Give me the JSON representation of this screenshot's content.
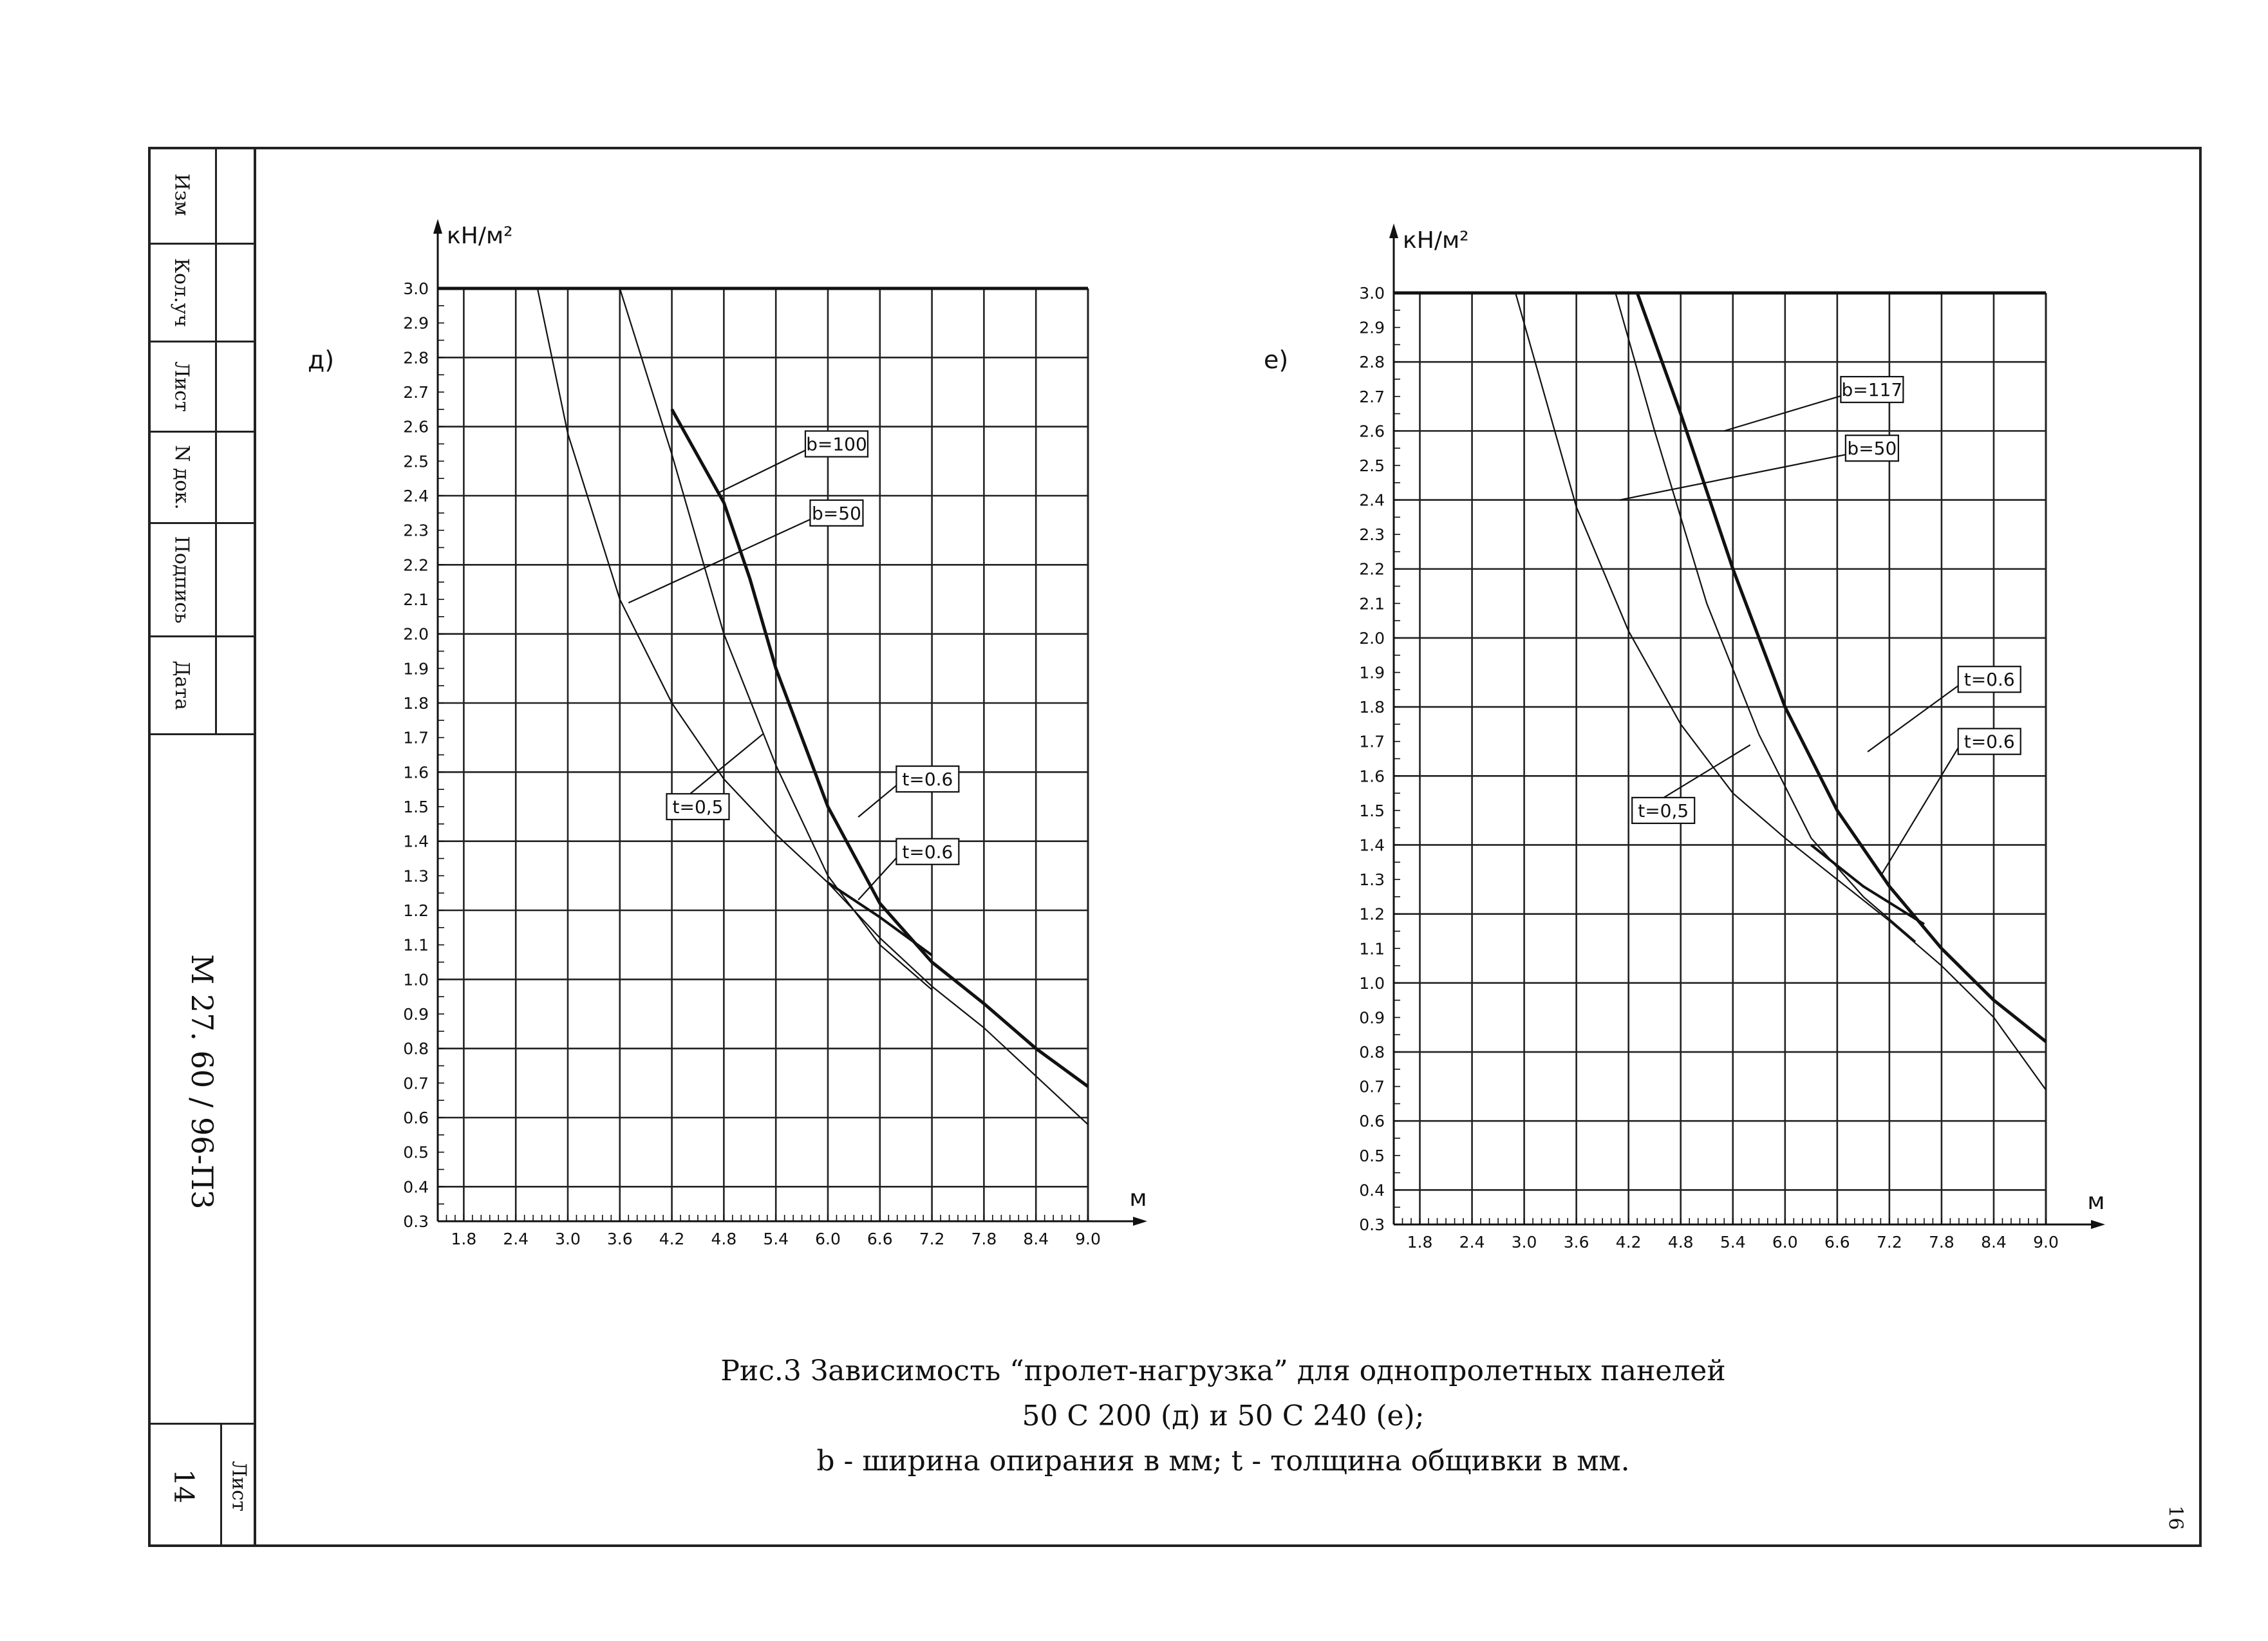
{
  "stamp": {
    "cells": [
      "Изм",
      "Кол.уч",
      "Лист",
      "N док.",
      "Подпись",
      "Дата"
    ],
    "doc_code": "М 27. 60 / 96-ПЗ",
    "sheet_label": "Лист",
    "sheet_number": "14"
  },
  "page_corner": "16",
  "caption": {
    "line1": "Рис.3 Зависимость “пролет-нагрузка” для однопролетных панелей",
    "line2": "50 С 200 (д) и 50 С 240 (е);",
    "line3": "b - ширина опирания в мм;   t - толщина общивки в мм."
  },
  "chart_data": [
    {
      "type": "line",
      "panel_label": "д)",
      "ylabel": "кН/м²",
      "xlabel": "м",
      "xlim": [
        1.5,
        9.0
      ],
      "ylim": [
        0.3,
        3.0
      ],
      "x_ticks": [
        "1.8",
        "2.4",
        "3.0",
        "3.6",
        "4.2",
        "4.8",
        "5.4",
        "6.0",
        "6.6",
        "7.2",
        "7.8",
        "8.4",
        "9.0"
      ],
      "y_ticks": [
        "3.0",
        "2.9",
        "2.8",
        "2.7",
        "2.6",
        "2.5",
        "2.4",
        "2.3",
        "2.2",
        "2.1",
        "2.0",
        "1.9",
        "1.8",
        "1.7",
        "1.6",
        "1.5",
        "1.4",
        "1.3",
        "1.2",
        "1.1",
        "1.0",
        "0.9",
        "0.8",
        "0.7",
        "0.6",
        "0.5",
        "0.4",
        "0.3"
      ],
      "grid": true,
      "series": [
        {
          "values": [
            [
              1.5,
              3.0
            ],
            [
              2.65,
              3.0
            ],
            [
              3.0,
              2.58
            ],
            [
              3.6,
              2.1
            ],
            [
              4.2,
              1.8
            ],
            [
              4.8,
              1.58
            ],
            [
              5.4,
              1.42
            ],
            [
              6.0,
              1.28
            ],
            [
              6.6,
              1.12
            ],
            [
              7.2,
              0.98
            ],
            [
              7.8,
              0.86
            ],
            [
              8.4,
              0.72
            ],
            [
              9.0,
              0.58
            ]
          ]
        },
        {
          "values": [
            [
              3.6,
              3.0
            ],
            [
              4.2,
              2.52
            ],
            [
              4.8,
              2.0
            ],
            [
              5.4,
              1.62
            ],
            [
              6.0,
              1.3
            ],
            [
              6.6,
              1.1
            ],
            [
              7.2,
              0.97
            ]
          ]
        },
        {
          "values": [
            [
              1.5,
              3.0
            ],
            [
              9.0,
              3.0
            ]
          ]
        },
        {
          "values": [
            [
              4.2,
              2.65
            ],
            [
              4.8,
              2.38
            ],
            [
              5.1,
              2.16
            ],
            [
              5.4,
              1.9
            ],
            [
              6.0,
              1.5
            ],
            [
              6.6,
              1.22
            ],
            [
              7.2,
              1.05
            ],
            [
              7.8,
              0.93
            ],
            [
              8.4,
              0.8
            ],
            [
              9.0,
              0.69
            ]
          ]
        },
        {
          "values": [
            [
              6.0,
              1.28
            ],
            [
              6.6,
              1.18
            ],
            [
              7.2,
              1.07
            ]
          ]
        }
      ],
      "annotations": [
        {
          "text": "b=100",
          "x": 6.1,
          "y": 2.55,
          "to": [
            4.75,
            2.41
          ]
        },
        {
          "text": "b=50",
          "x": 6.1,
          "y": 2.35,
          "to": [
            3.7,
            2.09
          ]
        },
        {
          "text": "t=0,5",
          "x": 4.5,
          "y": 1.5,
          "to": [
            5.25,
            1.71
          ]
        },
        {
          "text": "t=0.6",
          "x": 7.15,
          "y": 1.58,
          "to": [
            6.35,
            1.47
          ]
        },
        {
          "text": "t=0.6",
          "x": 7.15,
          "y": 1.37,
          "to": [
            6.35,
            1.23
          ]
        }
      ]
    },
    {
      "type": "line",
      "panel_label": "е)",
      "ylabel": "кН/м²",
      "xlabel": "м",
      "xlim": [
        1.5,
        9.0
      ],
      "ylim": [
        0.3,
        3.0
      ],
      "x_ticks": [
        "1.8",
        "2.4",
        "3.0",
        "3.6",
        "4.2",
        "4.8",
        "5.4",
        "6.0",
        "6.6",
        "7.2",
        "7.8",
        "8.4",
        "9.0"
      ],
      "y_ticks": [
        "3.0",
        "2.9",
        "2.8",
        "2.7",
        "2.6",
        "2.5",
        "2.4",
        "2.3",
        "2.2",
        "2.1",
        "2.0",
        "1.9",
        "1.8",
        "1.7",
        "1.6",
        "1.5",
        "1.4",
        "1.3",
        "1.2",
        "1.1",
        "1.0",
        "0.9",
        "0.8",
        "0.7",
        "0.6",
        "0.5",
        "0.4",
        "0.3"
      ],
      "grid": true,
      "series": [
        {
          "values": [
            [
              1.5,
              3.0
            ],
            [
              2.9,
              3.0
            ],
            [
              3.6,
              2.38
            ],
            [
              4.2,
              2.02
            ],
            [
              4.8,
              1.75
            ],
            [
              5.4,
              1.55
            ],
            [
              6.0,
              1.42
            ],
            [
              6.6,
              1.3
            ],
            [
              7.2,
              1.18
            ],
            [
              7.8,
              1.05
            ],
            [
              8.4,
              0.9
            ],
            [
              9.0,
              0.69
            ]
          ]
        },
        {
          "values": [
            [
              4.05,
              3.0
            ],
            [
              4.5,
              2.6
            ],
            [
              5.1,
              2.1
            ],
            [
              5.7,
              1.72
            ],
            [
              6.3,
              1.42
            ],
            [
              6.9,
              1.25
            ],
            [
              7.5,
              1.12
            ]
          ]
        },
        {
          "values": [
            [
              1.5,
              3.0
            ],
            [
              9.0,
              3.0
            ]
          ]
        },
        {
          "values": [
            [
              4.3,
              3.0
            ],
            [
              4.8,
              2.65
            ],
            [
              5.4,
              2.2
            ],
            [
              6.0,
              1.8
            ],
            [
              6.6,
              1.5
            ],
            [
              7.2,
              1.28
            ],
            [
              7.8,
              1.1
            ],
            [
              8.4,
              0.95
            ],
            [
              9.0,
              0.83
            ]
          ]
        },
        {
          "values": [
            [
              6.3,
              1.4
            ],
            [
              6.9,
              1.28
            ],
            [
              7.6,
              1.17
            ]
          ]
        }
      ],
      "annotations": [
        {
          "text": "b=117",
          "x": 7.0,
          "y": 2.72,
          "to": [
            5.3,
            2.6
          ]
        },
        {
          "text": "b=50",
          "x": 7.0,
          "y": 2.55,
          "to": [
            4.1,
            2.4
          ]
        },
        {
          "text": "t=0.6",
          "x": 8.35,
          "y": 1.88,
          "to": [
            6.95,
            1.67
          ]
        },
        {
          "text": "t=0.6",
          "x": 8.35,
          "y": 1.7,
          "to": [
            7.1,
            1.31
          ]
        },
        {
          "text": "t=0,5",
          "x": 4.6,
          "y": 1.5,
          "to": [
            5.6,
            1.69
          ]
        }
      ]
    }
  ]
}
